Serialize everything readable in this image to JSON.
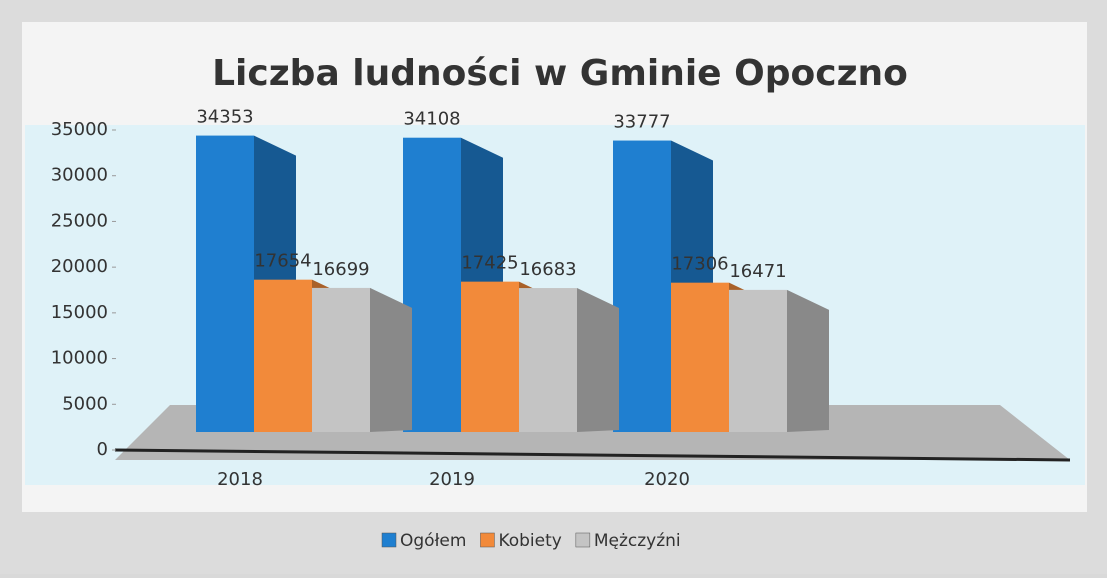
{
  "chart_data": {
    "type": "bar",
    "title": "Liczba ludności w Gminie Opoczno",
    "categories": [
      "2018",
      "2019",
      "2020"
    ],
    "series": [
      {
        "name": "Ogółem",
        "color": "#1f7fd0",
        "values": [
          34353,
          34108,
          33777
        ]
      },
      {
        "name": "Kobiety",
        "color": "#f28a3a",
        "values": [
          17654,
          17425,
          17306
        ]
      },
      {
        "name": "Mężczyźni",
        "color": "#c4c4c4",
        "values": [
          16699,
          16683,
          16471
        ]
      }
    ],
    "ylim": [
      0,
      35000
    ],
    "yticks": [
      0,
      5000,
      10000,
      15000,
      20000,
      25000,
      30000,
      35000
    ],
    "legend": "bottom"
  }
}
